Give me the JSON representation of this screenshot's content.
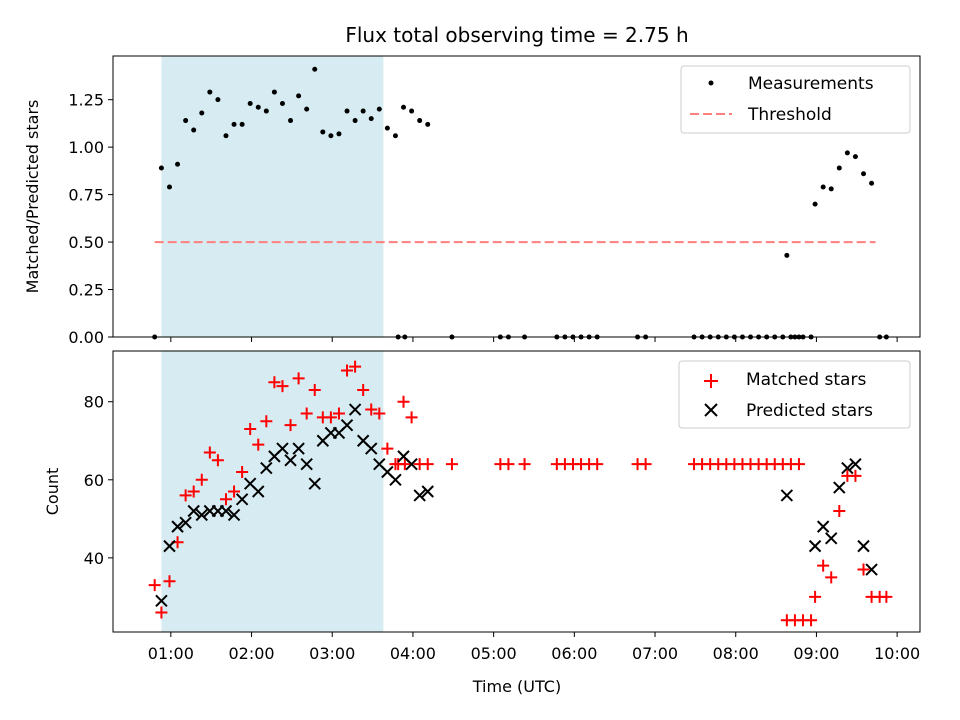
{
  "title": "Flux total observing time = 2.75 h",
  "colors": {
    "measurement": "#000000",
    "threshold": "#ff7f7f",
    "matched": "#ff0000",
    "predicted": "#000000",
    "span": "#add8e6"
  },
  "chart_data": [
    {
      "type": "scatter",
      "panel": "top",
      "title": "Flux total observing time = 2.75 h",
      "xlabel": "",
      "ylabel": "Matched/Predicted stars",
      "xlim": [
        "00:17",
        "10:17"
      ],
      "ylim": [
        0,
        1.48
      ],
      "yticks": [
        0.0,
        0.25,
        0.5,
        0.75,
        1.0,
        1.25
      ],
      "ytick_labels": [
        "0.00",
        "0.25",
        "0.50",
        "0.75",
        "1.00",
        "1.25"
      ],
      "shaded_span": [
        "00:53",
        "03:38"
      ],
      "legend": {
        "placement": "upper right",
        "entries": [
          "Measurements",
          "Threshold"
        ]
      },
      "threshold": {
        "name": "Threshold",
        "y": 0.5,
        "x": [
          "00:48",
          "09:44"
        ]
      },
      "series": [
        {
          "name": "Measurements",
          "marker": "dot",
          "points": [
            [
              "00:48",
              0.0
            ],
            [
              "00:53",
              0.89
            ],
            [
              "00:59",
              0.79
            ],
            [
              "01:05",
              0.91
            ],
            [
              "01:11",
              1.14
            ],
            [
              "01:17",
              1.09
            ],
            [
              "01:23",
              1.18
            ],
            [
              "01:29",
              1.29
            ],
            [
              "01:35",
              1.25
            ],
            [
              "01:41",
              1.06
            ],
            [
              "01:47",
              1.12
            ],
            [
              "01:53",
              1.12
            ],
            [
              "01:59",
              1.23
            ],
            [
              "02:05",
              1.21
            ],
            [
              "02:11",
              1.19
            ],
            [
              "02:17",
              1.29
            ],
            [
              "02:23",
              1.23
            ],
            [
              "02:29",
              1.14
            ],
            [
              "02:35",
              1.27
            ],
            [
              "02:41",
              1.2
            ],
            [
              "02:47",
              1.41
            ],
            [
              "02:53",
              1.08
            ],
            [
              "02:59",
              1.06
            ],
            [
              "03:05",
              1.07
            ],
            [
              "03:11",
              1.19
            ],
            [
              "03:17",
              1.14
            ],
            [
              "03:23",
              1.19
            ],
            [
              "03:29",
              1.15
            ],
            [
              "03:35",
              1.2
            ],
            [
              "03:41",
              1.1
            ],
            [
              "03:47",
              1.06
            ],
            [
              "03:53",
              1.21
            ],
            [
              "03:59",
              1.19
            ],
            [
              "04:05",
              1.14
            ],
            [
              "04:11",
              1.12
            ],
            [
              "03:49",
              0.0
            ],
            [
              "03:54",
              0.0
            ],
            [
              "04:29",
              0.0
            ],
            [
              "05:05",
              0.0
            ],
            [
              "05:11",
              0.0
            ],
            [
              "05:23",
              0.0
            ],
            [
              "05:47",
              0.0
            ],
            [
              "05:53",
              0.0
            ],
            [
              "05:59",
              0.0
            ],
            [
              "06:05",
              0.0
            ],
            [
              "06:11",
              0.0
            ],
            [
              "06:17",
              0.0
            ],
            [
              "06:47",
              0.0
            ],
            [
              "06:53",
              0.0
            ],
            [
              "07:29",
              0.0
            ],
            [
              "07:35",
              0.0
            ],
            [
              "07:41",
              0.0
            ],
            [
              "07:47",
              0.0
            ],
            [
              "07:53",
              0.0
            ],
            [
              "07:59",
              0.0
            ],
            [
              "08:05",
              0.0
            ],
            [
              "08:11",
              0.0
            ],
            [
              "08:17",
              0.0
            ],
            [
              "08:23",
              0.0
            ],
            [
              "08:29",
              0.0
            ],
            [
              "08:35",
              0.0
            ],
            [
              "08:41",
              0.0
            ],
            [
              "08:47",
              0.0
            ],
            [
              "08:38",
              0.43
            ],
            [
              "08:44",
              0.0
            ],
            [
              "08:50",
              0.0
            ],
            [
              "08:56",
              0.0
            ],
            [
              "08:59",
              0.7
            ],
            [
              "09:05",
              0.79
            ],
            [
              "09:11",
              0.78
            ],
            [
              "09:17",
              0.89
            ],
            [
              "09:23",
              0.97
            ],
            [
              "09:29",
              0.95
            ],
            [
              "09:35",
              0.86
            ],
            [
              "09:41",
              0.81
            ],
            [
              "09:47",
              0.0
            ],
            [
              "09:52",
              0.0
            ]
          ]
        }
      ]
    },
    {
      "type": "scatter",
      "panel": "bottom",
      "xlabel": "Time (UTC)",
      "ylabel": "Count",
      "xlim": [
        "00:17",
        "10:17"
      ],
      "ylim": [
        21,
        93
      ],
      "yticks": [
        40,
        60,
        80
      ],
      "ytick_labels": [
        "40",
        "60",
        "80"
      ],
      "xticks": [
        "01:00",
        "02:00",
        "03:00",
        "04:00",
        "05:00",
        "06:00",
        "07:00",
        "08:00",
        "09:00",
        "10:00"
      ],
      "shaded_span": [
        "00:53",
        "03:38"
      ],
      "legend": {
        "placement": "upper right",
        "entries": [
          "Matched stars",
          "Predicted stars"
        ]
      },
      "series": [
        {
          "name": "Matched stars",
          "marker": "plus",
          "points": [
            [
              "00:48",
              33
            ],
            [
              "00:53",
              26
            ],
            [
              "00:59",
              34
            ],
            [
              "01:05",
              44
            ],
            [
              "01:11",
              56
            ],
            [
              "01:17",
              57
            ],
            [
              "01:23",
              60
            ],
            [
              "01:29",
              67
            ],
            [
              "01:35",
              65
            ],
            [
              "01:41",
              55
            ],
            [
              "01:47",
              57
            ],
            [
              "01:53",
              62
            ],
            [
              "01:59",
              73
            ],
            [
              "02:05",
              69
            ],
            [
              "02:11",
              75
            ],
            [
              "02:17",
              85
            ],
            [
              "02:23",
              84
            ],
            [
              "02:29",
              74
            ],
            [
              "02:35",
              86
            ],
            [
              "02:41",
              77
            ],
            [
              "02:47",
              83
            ],
            [
              "02:53",
              76
            ],
            [
              "02:59",
              76
            ],
            [
              "03:05",
              77
            ],
            [
              "03:11",
              88
            ],
            [
              "03:17",
              89
            ],
            [
              "03:23",
              83
            ],
            [
              "03:29",
              78
            ],
            [
              "03:35",
              77
            ],
            [
              "03:41",
              68
            ],
            [
              "03:47",
              64
            ],
            [
              "03:53",
              80
            ],
            [
              "03:59",
              76
            ],
            [
              "04:05",
              64
            ],
            [
              "04:11",
              64
            ],
            [
              "03:49",
              64
            ],
            [
              "03:54",
              64
            ],
            [
              "04:29",
              64
            ],
            [
              "05:05",
              64
            ],
            [
              "05:11",
              64
            ],
            [
              "05:23",
              64
            ],
            [
              "05:47",
              64
            ],
            [
              "05:53",
              64
            ],
            [
              "05:59",
              64
            ],
            [
              "06:05",
              64
            ],
            [
              "06:11",
              64
            ],
            [
              "06:17",
              64
            ],
            [
              "06:47",
              64
            ],
            [
              "06:53",
              64
            ],
            [
              "07:29",
              64
            ],
            [
              "07:35",
              64
            ],
            [
              "07:41",
              64
            ],
            [
              "07:47",
              64
            ],
            [
              "07:53",
              64
            ],
            [
              "07:59",
              64
            ],
            [
              "08:05",
              64
            ],
            [
              "08:11",
              64
            ],
            [
              "08:17",
              64
            ],
            [
              "08:23",
              64
            ],
            [
              "08:29",
              64
            ],
            [
              "08:35",
              64
            ],
            [
              "08:41",
              64
            ],
            [
              "08:47",
              64
            ],
            [
              "08:38",
              24
            ],
            [
              "08:44",
              24
            ],
            [
              "08:50",
              24
            ],
            [
              "08:56",
              24
            ],
            [
              "08:59",
              30
            ],
            [
              "09:05",
              38
            ],
            [
              "09:11",
              35
            ],
            [
              "09:17",
              52
            ],
            [
              "09:23",
              61
            ],
            [
              "09:29",
              61
            ],
            [
              "09:35",
              37
            ],
            [
              "09:41",
              30
            ],
            [
              "09:47",
              30
            ],
            [
              "09:52",
              30
            ]
          ]
        },
        {
          "name": "Predicted stars",
          "marker": "x",
          "points": [
            [
              "00:53",
              29
            ],
            [
              "00:59",
              43
            ],
            [
              "01:05",
              48
            ],
            [
              "01:11",
              49
            ],
            [
              "01:17",
              52
            ],
            [
              "01:23",
              51
            ],
            [
              "01:29",
              52
            ],
            [
              "01:35",
              52
            ],
            [
              "01:41",
              52
            ],
            [
              "01:47",
              51
            ],
            [
              "01:53",
              55
            ],
            [
              "01:59",
              59
            ],
            [
              "02:05",
              57
            ],
            [
              "02:11",
              63
            ],
            [
              "02:17",
              66
            ],
            [
              "02:23",
              68
            ],
            [
              "02:29",
              65
            ],
            [
              "02:35",
              68
            ],
            [
              "02:41",
              64
            ],
            [
              "02:47",
              59
            ],
            [
              "02:53",
              70
            ],
            [
              "02:59",
              72
            ],
            [
              "03:05",
              72
            ],
            [
              "03:11",
              74
            ],
            [
              "03:17",
              78
            ],
            [
              "03:23",
              70
            ],
            [
              "03:29",
              68
            ],
            [
              "03:35",
              64
            ],
            [
              "03:41",
              62
            ],
            [
              "03:47",
              60
            ],
            [
              "03:53",
              66
            ],
            [
              "03:59",
              64
            ],
            [
              "04:05",
              56
            ],
            [
              "04:11",
              57
            ],
            [
              "08:38",
              56
            ],
            [
              "08:59",
              43
            ],
            [
              "09:05",
              48
            ],
            [
              "09:11",
              45
            ],
            [
              "09:17",
              58
            ],
            [
              "09:23",
              63
            ],
            [
              "09:29",
              64
            ],
            [
              "09:35",
              43
            ],
            [
              "09:41",
              37
            ]
          ]
        }
      ]
    }
  ]
}
